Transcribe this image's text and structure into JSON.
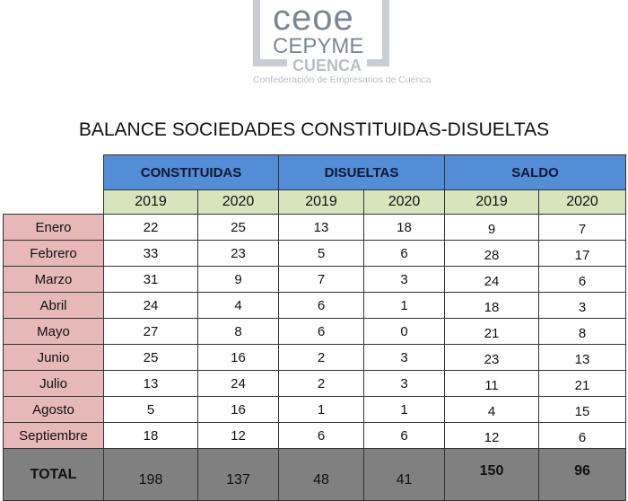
{
  "logo": {
    "line1": "ceoe",
    "line2": "CEPYME",
    "line3": "CUENCA",
    "tagline": "Confederación de Empresarios de Cuenca"
  },
  "title": "BALANCE SOCIEDADES CONSTITUIDAS-DISUELTAS",
  "groups": [
    "CONSTITUIDAS",
    "DISUELTAS",
    "SALDO"
  ],
  "years": [
    "2019",
    "2020",
    "2019",
    "2020",
    "2019",
    "2020"
  ],
  "rows": [
    {
      "month": "Enero",
      "values": [
        "22",
        "25",
        "13",
        "18",
        "9",
        "7"
      ]
    },
    {
      "month": "Febrero",
      "values": [
        "33",
        "23",
        "5",
        "6",
        "28",
        "17"
      ]
    },
    {
      "month": "Marzo",
      "values": [
        "31",
        "9",
        "7",
        "3",
        "24",
        "6"
      ]
    },
    {
      "month": "Abril",
      "values": [
        "24",
        "4",
        "6",
        "1",
        "18",
        "3"
      ]
    },
    {
      "month": "Mayo",
      "values": [
        "27",
        "8",
        "6",
        "0",
        "21",
        "8"
      ]
    },
    {
      "month": "Junio",
      "values": [
        "25",
        "16",
        "2",
        "3",
        "23",
        "13"
      ]
    },
    {
      "month": "Julio",
      "values": [
        "13",
        "24",
        "2",
        "3",
        "11",
        "21"
      ]
    },
    {
      "month": "Agosto",
      "values": [
        "5",
        "16",
        "1",
        "1",
        "4",
        "15"
      ]
    },
    {
      "month": "Septiembre",
      "values": [
        "18",
        "12",
        "6",
        "6",
        "12",
        "6"
      ]
    }
  ],
  "total": {
    "label": "TOTAL",
    "values": [
      "198",
      "137",
      "48",
      "41",
      "150",
      "96"
    ]
  },
  "colors": {
    "header": "#538dd5",
    "years": "#d8e4bc",
    "months": "#e6b8b7",
    "total": "#808080"
  }
}
